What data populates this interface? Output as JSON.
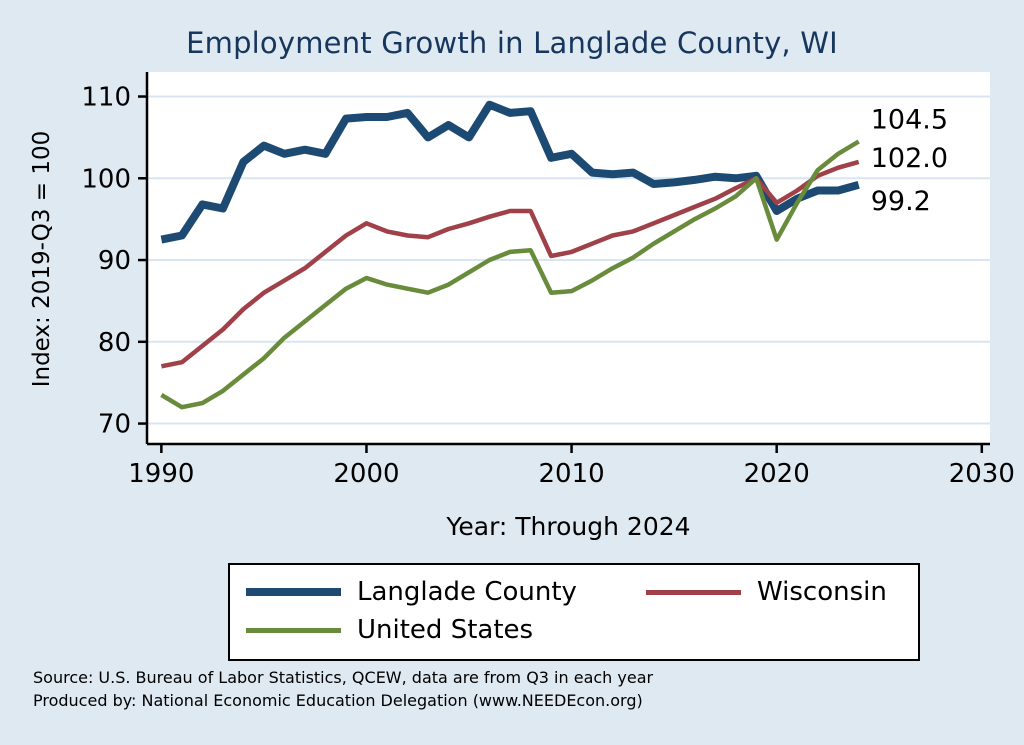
{
  "title": "Employment Growth in Langlade County, WI",
  "title_color": "#17365d",
  "background_color": "#dfe9f1",
  "axes": {
    "y_title": "Index: 2019-Q3 = 100",
    "x_title": "Year: Through 2024",
    "y_ticks": [
      "110",
      "100",
      "90",
      "80",
      "70"
    ],
    "y_tick_values": [
      110,
      100,
      90,
      80,
      70
    ],
    "x_ticks": [
      "1990",
      "2000",
      "2010",
      "2020",
      "2030"
    ],
    "x_tick_values": [
      1990,
      2000,
      2010,
      2020,
      2030
    ],
    "x_range": [
      1989.3,
      2030.4
    ],
    "y_range": [
      67.5,
      113.0
    ],
    "grid": "horizontal",
    "gridline_color": "#d9e5f2",
    "axis_color": "#000000",
    "plot_background": "#ffffff"
  },
  "chart_data": {
    "type": "line",
    "title": "Employment Growth in Langlade County, WI",
    "xlabel": "Year: Through 2024",
    "ylabel": "Index: 2019-Q3 = 100",
    "xlim": [
      1990,
      2030
    ],
    "ylim": [
      70,
      110
    ],
    "legend_position": "bottom",
    "x": [
      1990,
      1991,
      1992,
      1993,
      1994,
      1995,
      1996,
      1997,
      1998,
      1999,
      2000,
      2001,
      2002,
      2003,
      2004,
      2005,
      2006,
      2007,
      2008,
      2009,
      2010,
      2011,
      2012,
      2013,
      2014,
      2015,
      2016,
      2017,
      2018,
      2019,
      2020,
      2021,
      2022,
      2023,
      2024
    ],
    "series": [
      {
        "name": "Langlade County",
        "color": "#1c4a72",
        "line_width": 8,
        "end_label": "99.2",
        "end_label_offset": 16,
        "values": [
          92.5,
          93.0,
          96.8,
          96.3,
          102.0,
          104.0,
          103.0,
          103.5,
          103.0,
          107.3,
          107.5,
          107.5,
          108.0,
          105.0,
          106.5,
          105.0,
          109.0,
          108.0,
          108.2,
          102.5,
          103.0,
          100.7,
          100.5,
          100.7,
          99.3,
          99.5,
          99.8,
          100.2,
          100.0,
          100.3,
          96.0,
          97.5,
          98.5,
          98.5,
          99.2
        ]
      },
      {
        "name": "Wisconsin",
        "color": "#a04048",
        "line_width": 4.5,
        "end_label": "102.0",
        "end_label_offset": -4,
        "values": [
          77.0,
          77.5,
          79.5,
          81.5,
          84.0,
          86.0,
          87.5,
          89.0,
          91.0,
          93.0,
          94.5,
          93.5,
          93.0,
          92.8,
          93.8,
          94.5,
          95.3,
          96.0,
          96.0,
          90.5,
          91.0,
          92.0,
          93.0,
          93.5,
          94.5,
          95.5,
          96.5,
          97.5,
          98.8,
          100.0,
          97.0,
          98.5,
          100.3,
          101.3,
          102.0
        ]
      },
      {
        "name": "United States",
        "color": "#698b3c",
        "line_width": 4.5,
        "end_label": "104.5",
        "end_label_offset": -22,
        "values": [
          73.5,
          72.0,
          72.5,
          74.0,
          76.0,
          78.0,
          80.5,
          82.5,
          84.5,
          86.5,
          87.8,
          87.0,
          86.5,
          86.0,
          87.0,
          88.5,
          90.0,
          91.0,
          91.2,
          86.0,
          86.2,
          87.5,
          89.0,
          90.3,
          92.0,
          93.5,
          95.0,
          96.3,
          97.8,
          100.0,
          92.5,
          97.0,
          101.0,
          103.0,
          104.5
        ]
      }
    ]
  },
  "notes": {
    "source": "Source: U.S. Bureau of Labor Statistics, QCEW, data are from Q3 in each year",
    "produced_by": "Produced by: National Economic Education Delegation (www.NEEDEcon.org)"
  }
}
